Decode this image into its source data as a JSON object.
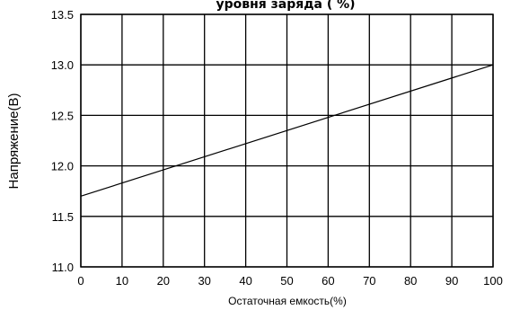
{
  "chart_data": {
    "type": "line",
    "title": "уровня заряда ( %)",
    "xlabel": "Остаточная емкость(%)",
    "ylabel": "Напряжение(В)",
    "xlim": [
      0,
      100
    ],
    "ylim": [
      11.0,
      13.5
    ],
    "x_ticks": [
      "0",
      "10",
      "20",
      "30",
      "40",
      "50",
      "60",
      "70",
      "80",
      "90",
      "100"
    ],
    "y_ticks": [
      "11.0",
      "11.5",
      "12.0",
      "12.5",
      "13.0",
      "13.5"
    ],
    "grid": true,
    "series": [
      {
        "x": [
          0,
          100
        ],
        "y": [
          11.7,
          13.0
        ]
      }
    ],
    "colors": {
      "line": "#000000",
      "grid": "#000000"
    }
  }
}
